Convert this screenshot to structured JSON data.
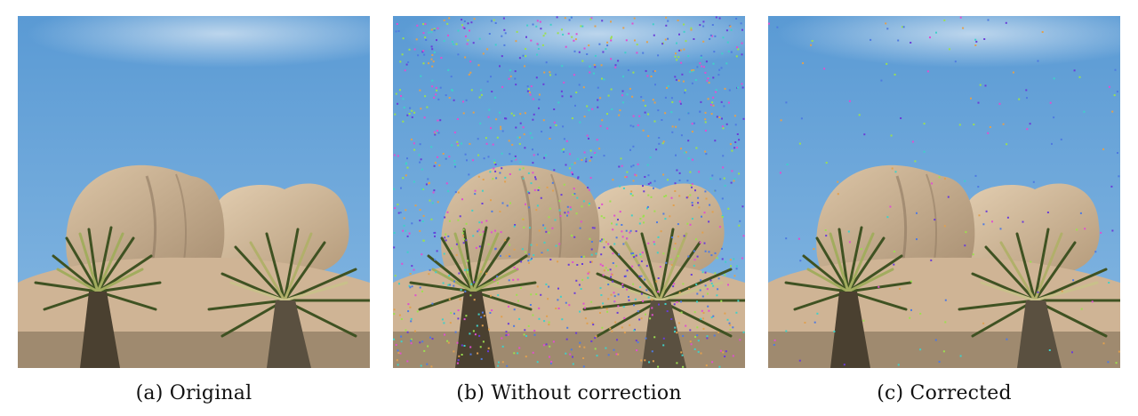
{
  "figure": {
    "panels": [
      {
        "caption": "(a) Original",
        "noise_level": 0
      },
      {
        "caption": "(b) Without correction",
        "noise_level": 1
      },
      {
        "caption": "(c) Corrected",
        "noise_level": 0.12
      }
    ],
    "colors": {
      "sky_top": "#5f9ed6",
      "sky_bottom": "#7fb2df",
      "rock_light": "#d8c0a0",
      "rock_dark": "#a88f72",
      "plant_dark": "#3b4a1f",
      "plant_light": "#9aa45a",
      "ground": "#6b5a45"
    }
  }
}
